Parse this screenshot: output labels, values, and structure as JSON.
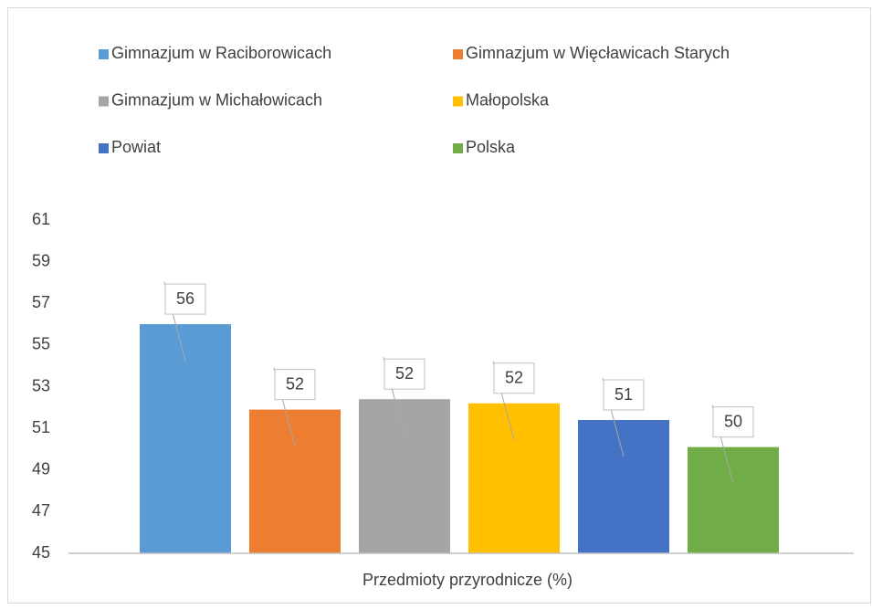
{
  "chart_data": {
    "type": "bar",
    "categories": [
      "Przedmioty przyrodnicze (%)"
    ],
    "series": [
      {
        "name": "Gimnazjum w Raciborowicach",
        "color": "#5b9bd5",
        "values": [
          56
        ]
      },
      {
        "name": "Gimnazjum w Więcławicach Starych",
        "color": "#ed7d31",
        "values": [
          51.9
        ],
        "value_labels": [
          "52"
        ]
      },
      {
        "name": "Gimnazjum w Michałowicach",
        "color": "#a5a5a5",
        "values": [
          52.4
        ],
        "value_labels": [
          "52"
        ]
      },
      {
        "name": "Małopolska",
        "color": "#ffc000",
        "values": [
          52.2
        ],
        "value_labels": [
          "52"
        ]
      },
      {
        "name": "Powiat",
        "color": "#4472c4",
        "values": [
          51.4
        ],
        "value_labels": [
          "51"
        ]
      },
      {
        "name": "Polska",
        "color": "#70ad47",
        "values": [
          50.1
        ],
        "value_labels": [
          "50"
        ]
      }
    ],
    "ylim": [
      45,
      61
    ],
    "yticks": [
      45,
      47,
      49,
      51,
      53,
      55,
      57,
      59,
      61
    ],
    "grid": false,
    "legend": "top"
  }
}
